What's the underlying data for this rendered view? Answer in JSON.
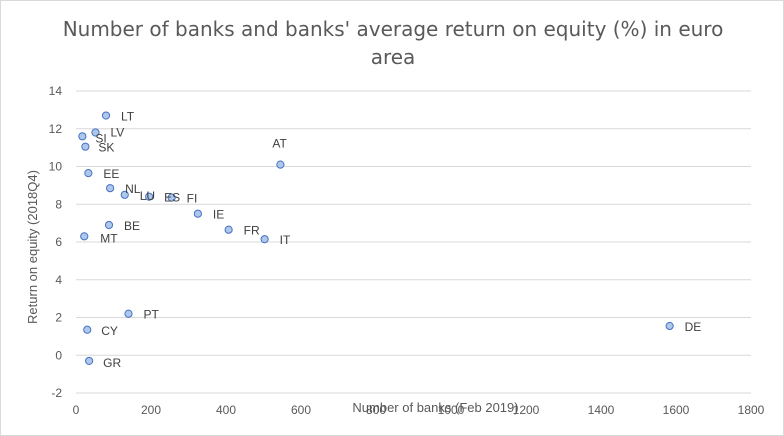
{
  "chart_data": {
    "type": "scatter",
    "title": "Number of banks and banks' average return on equity (%) in euro area",
    "xlabel": "Number of banks (Feb 2019)",
    "ylabel": "Return on equity (2018Q4)",
    "xlim": [
      0,
      1800
    ],
    "ylim": [
      -2,
      14
    ],
    "xticks": [
      0,
      200,
      400,
      600,
      800,
      1000,
      1200,
      1400,
      1600,
      1800
    ],
    "yticks": [
      -2,
      0,
      2,
      4,
      6,
      8,
      10,
      12,
      14
    ],
    "grid": "horizontal",
    "legend": "none",
    "colors": {
      "marker_fill": "#aec7ea",
      "marker_stroke": "#4472c4",
      "grid": "#d9d9d9",
      "text": "#595959"
    },
    "points": [
      {
        "label": "LT",
        "x": 80,
        "y": 12.7
      },
      {
        "label": "LV",
        "x": 52,
        "y": 11.8
      },
      {
        "label": "SI",
        "x": 17,
        "y": 11.6
      },
      {
        "label": "SK",
        "x": 25,
        "y": 11.05
      },
      {
        "label": "AT",
        "x": 545,
        "y": 10.1
      },
      {
        "label": "EE",
        "x": 33,
        "y": 9.65
      },
      {
        "label": "NL",
        "x": 91,
        "y": 8.85
      },
      {
        "label": "LU",
        "x": 130,
        "y": 8.5
      },
      {
        "label": "ES",
        "x": 195,
        "y": 8.4
      },
      {
        "label": "FI",
        "x": 255,
        "y": 8.35
      },
      {
        "label": "IE",
        "x": 325,
        "y": 7.5
      },
      {
        "label": "BE",
        "x": 88,
        "y": 6.9
      },
      {
        "label": "FR",
        "x": 407,
        "y": 6.65
      },
      {
        "label": "MT",
        "x": 22,
        "y": 6.3
      },
      {
        "label": "IT",
        "x": 503,
        "y": 6.15
      },
      {
        "label": "PT",
        "x": 140,
        "y": 2.2
      },
      {
        "label": "DE",
        "x": 1583,
        "y": 1.55
      },
      {
        "label": "CY",
        "x": 30,
        "y": 1.35
      },
      {
        "label": "GR",
        "x": 35,
        "y": -0.3
      }
    ]
  }
}
